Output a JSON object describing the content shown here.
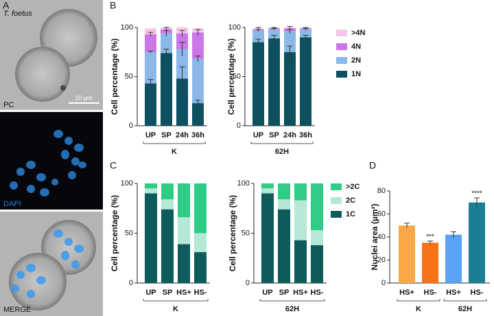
{
  "panel_labels": [
    "A",
    "B",
    "C",
    "D"
  ],
  "images": [
    {
      "title": "T. foetus",
      "label": "PC",
      "scale": "10 µm"
    },
    {
      "label": "DAPI"
    },
    {
      "label": "MERGE"
    }
  ],
  "chart_data": [
    {
      "type": "bar",
      "stacked": true,
      "ylabel": "Cell percentage (%)",
      "xlabel": "K",
      "categories": [
        "UP",
        "SP",
        "24h",
        "36h"
      ],
      "ylim": [
        0,
        100
      ],
      "yticks": [
        0,
        50,
        100
      ],
      "series": [
        {
          "name": "1N",
          "color": "#0d5060",
          "values": [
            43,
            74,
            48,
            23
          ],
          "errors": [
            4,
            4,
            12,
            3
          ]
        },
        {
          "name": "2N",
          "color": "#8ab8e8",
          "values": [
            32,
            20,
            30,
            45
          ],
          "errors": [
            1,
            3,
            7,
            3
          ]
        },
        {
          "name": "4N",
          "color": "#cc77e8",
          "values": [
            18,
            4,
            16,
            27
          ],
          "errors": [
            2,
            2,
            3,
            3
          ]
        },
        {
          "name": ">4N",
          "color": "#f5c6e6",
          "values": [
            6,
            2,
            6,
            4
          ]
        }
      ]
    },
    {
      "type": "bar",
      "stacked": true,
      "legend": true,
      "ylabel": "Cell percentage (%)",
      "xlabel": "62H",
      "categories": [
        "UP",
        "SP",
        "24h",
        "36h"
      ],
      "ylim": [
        0,
        100
      ],
      "yticks": [
        0,
        50,
        100
      ],
      "series": [
        {
          "name": "1N",
          "color": "#0d5060",
          "values": [
            85,
            89,
            75,
            90
          ],
          "errors": [
            3,
            3,
            6,
            2
          ]
        },
        {
          "name": "2N",
          "color": "#8ab8e8",
          "values": [
            12,
            9,
            21,
            8
          ],
          "errors": [
            1,
            1,
            2,
            1
          ]
        },
        {
          "name": "4N",
          "color": "#cc77e8",
          "values": [
            1,
            1,
            3,
            1
          ],
          "errors": [
            2,
            1,
            2,
            1
          ]
        },
        {
          "name": ">4N",
          "color": "#f5c6e6",
          "values": [
            1,
            1,
            1,
            1
          ]
        }
      ]
    },
    {
      "type": "bar",
      "stacked": true,
      "ylabel": "Cell percentage (%)",
      "xlabel": "K",
      "categories": [
        "UP",
        "SP",
        "HS+",
        "HS-"
      ],
      "ylim": [
        0,
        100
      ],
      "yticks": [
        0,
        50,
        100
      ],
      "series": [
        {
          "name": "1C",
          "color": "#0d5b5b",
          "values": [
            90,
            74,
            39,
            31
          ]
        },
        {
          "name": "2C",
          "color": "#b5e8d5",
          "values": [
            5,
            10,
            27,
            19
          ]
        },
        {
          "name": ">2C",
          "color": "#2ecc85",
          "values": [
            5,
            16,
            34,
            50
          ]
        }
      ]
    },
    {
      "type": "bar",
      "stacked": true,
      "legend": true,
      "ylabel": "Cell percentage (%)",
      "xlabel": "62H",
      "categories": [
        "UP",
        "SP",
        "HS+",
        "HS-"
      ],
      "ylim": [
        0,
        100
      ],
      "yticks": [
        0,
        50,
        100
      ],
      "series": [
        {
          "name": "1C",
          "color": "#0d5b5b",
          "values": [
            90,
            74,
            43,
            38
          ]
        },
        {
          "name": "2C",
          "color": "#b5e8d5",
          "values": [
            5,
            10,
            40,
            15
          ]
        },
        {
          "name": ">2C",
          "color": "#2ecc85",
          "values": [
            5,
            16,
            17,
            47
          ]
        }
      ]
    },
    {
      "type": "bar",
      "ylabel": "Nuclei area (µm²)",
      "group_labels": [
        "K",
        "62H"
      ],
      "categories": [
        "HS+",
        "HS-",
        "HS+",
        "HS-"
      ],
      "ylim": [
        0,
        80
      ],
      "yticks": [
        0,
        20,
        40,
        60,
        80
      ],
      "values": [
        50,
        35,
        42,
        70
      ],
      "errors": [
        2,
        1.5,
        2.5,
        4
      ],
      "colors": [
        "#f9a846",
        "#f97316",
        "#5aa2f6",
        "#1a7f94"
      ],
      "significance": [
        null,
        "***",
        null,
        "****"
      ]
    }
  ]
}
